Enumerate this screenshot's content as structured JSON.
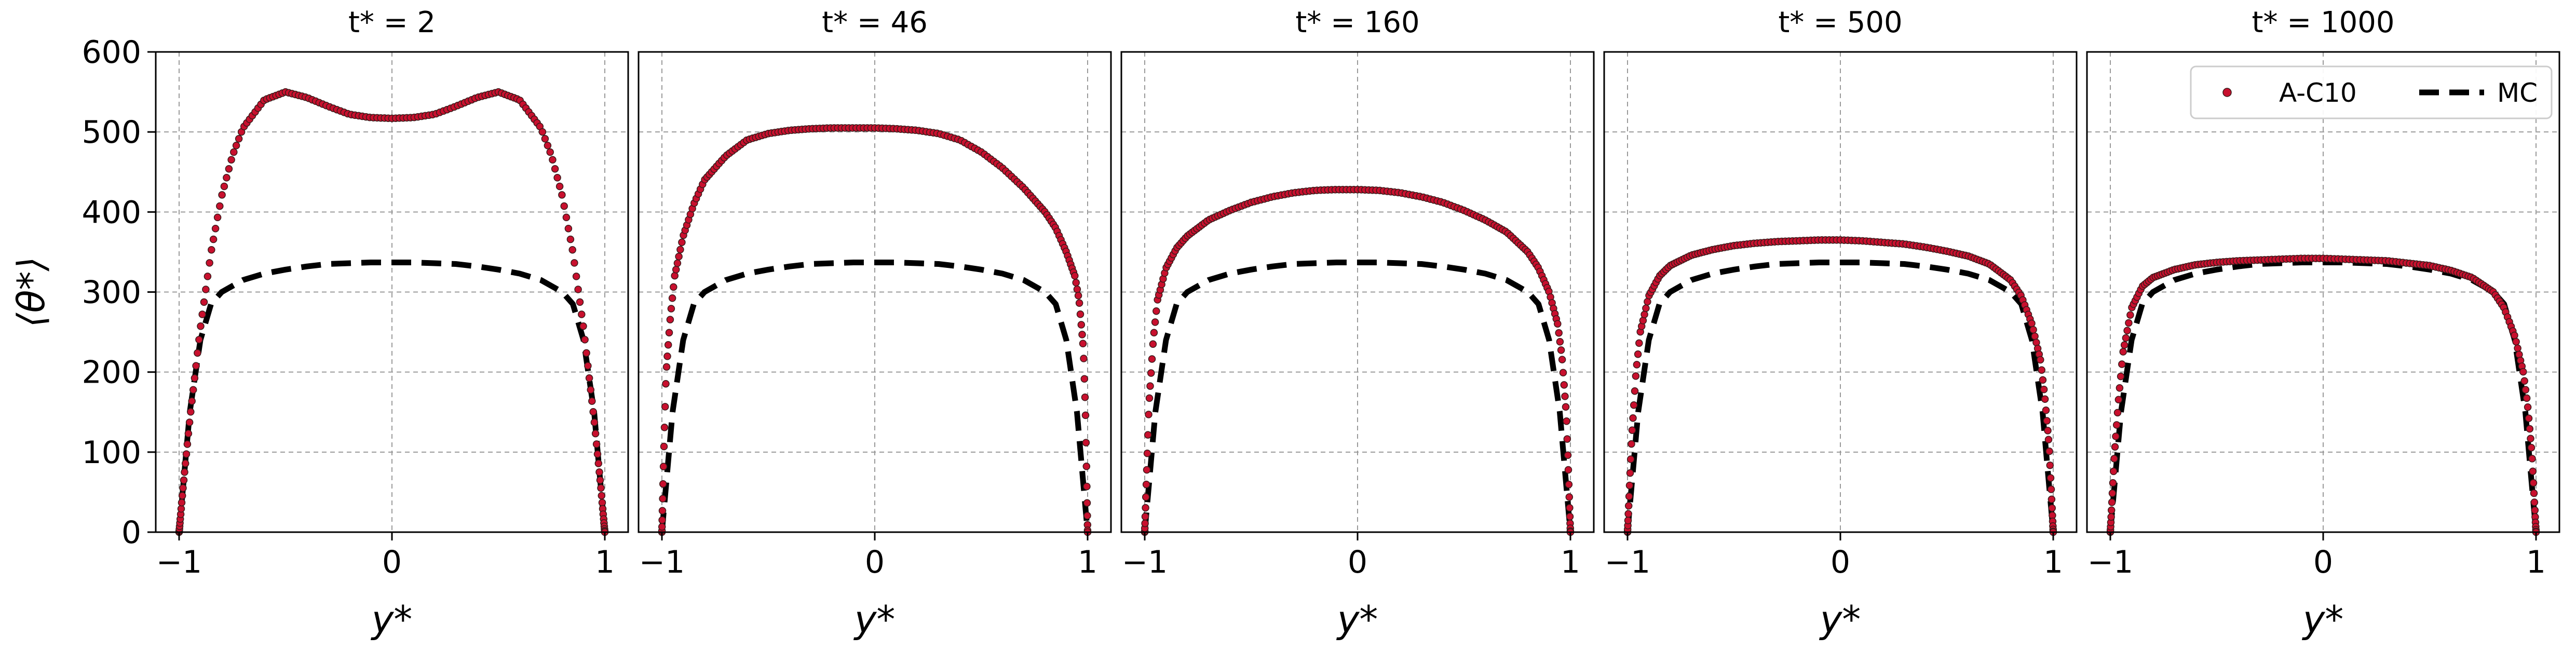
{
  "chart_data": {
    "type": "scatter",
    "ylabel": "⟨θ*⟩",
    "xlabel": "y*",
    "xlim": [
      -1.0,
      1.0
    ],
    "ylim": [
      0,
      600
    ],
    "xticks": [
      -1,
      0,
      1
    ],
    "yticks": [
      0,
      100,
      200,
      300,
      400,
      500,
      600
    ],
    "grid": true,
    "legend_position": "top-right",
    "legend": [
      {
        "name": "A-C10",
        "style": "points",
        "color": "#c8102e"
      },
      {
        "name": "MC",
        "style": "dashed",
        "color": "#000000"
      }
    ],
    "colors": {
      "points": "#c8102e",
      "points_edge": "#3a1a1a",
      "mc": "#000000",
      "grid": "#9a9a9a"
    },
    "mc_profile": {
      "y": [
        -1.0,
        -0.95,
        -0.9,
        -0.85,
        -0.8,
        -0.7,
        -0.6,
        -0.5,
        -0.4,
        -0.3,
        -0.2,
        -0.1,
        0.0,
        0.1,
        0.2,
        0.3,
        0.4,
        0.5,
        0.6,
        0.7,
        0.8,
        0.85,
        0.9,
        0.95,
        1.0
      ],
      "theta": [
        0,
        150,
        240,
        285,
        300,
        315,
        323,
        328,
        332,
        335,
        336,
        337,
        337,
        337,
        336,
        335,
        332,
        328,
        323,
        315,
        300,
        285,
        240,
        150,
        0
      ]
    },
    "panels": [
      {
        "title": "t* = 2",
        "y": [
          -1.0,
          -0.98,
          -0.95,
          -0.9,
          -0.85,
          -0.8,
          -0.75,
          -0.7,
          -0.6,
          -0.5,
          -0.4,
          -0.3,
          -0.2,
          -0.1,
          0.0,
          0.1,
          0.2,
          0.3,
          0.4,
          0.5,
          0.6,
          0.7,
          0.75,
          0.8,
          0.85,
          0.9,
          0.95,
          0.98,
          1.0
        ],
        "theta": [
          0,
          60,
          140,
          255,
          350,
          420,
          470,
          505,
          540,
          550,
          543,
          532,
          522,
          518,
          517,
          518,
          522,
          532,
          543,
          550,
          540,
          505,
          470,
          420,
          350,
          255,
          140,
          60,
          0
        ]
      },
      {
        "title": "t* = 46",
        "y": [
          -1.0,
          -0.99,
          -0.98,
          -0.96,
          -0.94,
          -0.9,
          -0.85,
          -0.8,
          -0.7,
          -0.6,
          -0.5,
          -0.4,
          -0.3,
          -0.2,
          -0.1,
          0.0,
          0.1,
          0.2,
          0.3,
          0.4,
          0.5,
          0.6,
          0.7,
          0.8,
          0.85,
          0.9,
          0.94,
          0.96,
          0.98,
          0.99,
          1.0
        ],
        "theta": [
          0,
          110,
          200,
          270,
          320,
          370,
          410,
          440,
          470,
          490,
          498,
          502,
          504,
          505,
          505,
          505,
          504,
          502,
          498,
          490,
          475,
          455,
          430,
          400,
          380,
          350,
          320,
          290,
          230,
          150,
          0
        ]
      },
      {
        "title": "t* = 160",
        "y": [
          -1.0,
          -0.99,
          -0.98,
          -0.96,
          -0.94,
          -0.9,
          -0.85,
          -0.8,
          -0.7,
          -0.6,
          -0.5,
          -0.4,
          -0.3,
          -0.2,
          -0.1,
          0.0,
          0.1,
          0.2,
          0.3,
          0.4,
          0.5,
          0.6,
          0.7,
          0.8,
          0.85,
          0.9,
          0.94,
          0.96,
          0.98,
          0.99,
          1.0
        ],
        "theta": [
          0,
          80,
          160,
          240,
          290,
          330,
          355,
          370,
          390,
          402,
          412,
          419,
          424,
          427,
          428,
          428,
          427,
          424,
          419,
          412,
          402,
          390,
          375,
          350,
          330,
          300,
          260,
          220,
          150,
          80,
          0
        ]
      },
      {
        "title": "t* = 500",
        "y": [
          -1.0,
          -0.99,
          -0.98,
          -0.96,
          -0.94,
          -0.9,
          -0.85,
          -0.8,
          -0.7,
          -0.6,
          -0.5,
          -0.4,
          -0.3,
          -0.2,
          -0.1,
          0.0,
          0.1,
          0.2,
          0.3,
          0.4,
          0.5,
          0.6,
          0.7,
          0.8,
          0.85,
          0.9,
          0.94,
          0.96,
          0.98,
          0.99,
          1.0
        ],
        "theta": [
          0,
          60,
          120,
          200,
          250,
          295,
          320,
          333,
          346,
          353,
          358,
          361,
          363,
          364,
          365,
          365,
          364,
          362,
          360,
          356,
          351,
          345,
          335,
          315,
          295,
          260,
          215,
          170,
          110,
          55,
          0
        ]
      },
      {
        "title": "t* = 1000",
        "y": [
          -1.0,
          -0.99,
          -0.98,
          -0.96,
          -0.94,
          -0.9,
          -0.85,
          -0.8,
          -0.7,
          -0.6,
          -0.5,
          -0.4,
          -0.3,
          -0.2,
          -0.1,
          0.0,
          0.1,
          0.2,
          0.3,
          0.4,
          0.5,
          0.6,
          0.7,
          0.8,
          0.85,
          0.9,
          0.94,
          0.96,
          0.98,
          0.99,
          1.0
        ],
        "theta": [
          0,
          50,
          100,
          170,
          225,
          280,
          307,
          318,
          328,
          334,
          337,
          339,
          340,
          341,
          342,
          342,
          341,
          340,
          339,
          336,
          333,
          327,
          318,
          300,
          280,
          245,
          200,
          160,
          100,
          50,
          0
        ]
      }
    ]
  }
}
